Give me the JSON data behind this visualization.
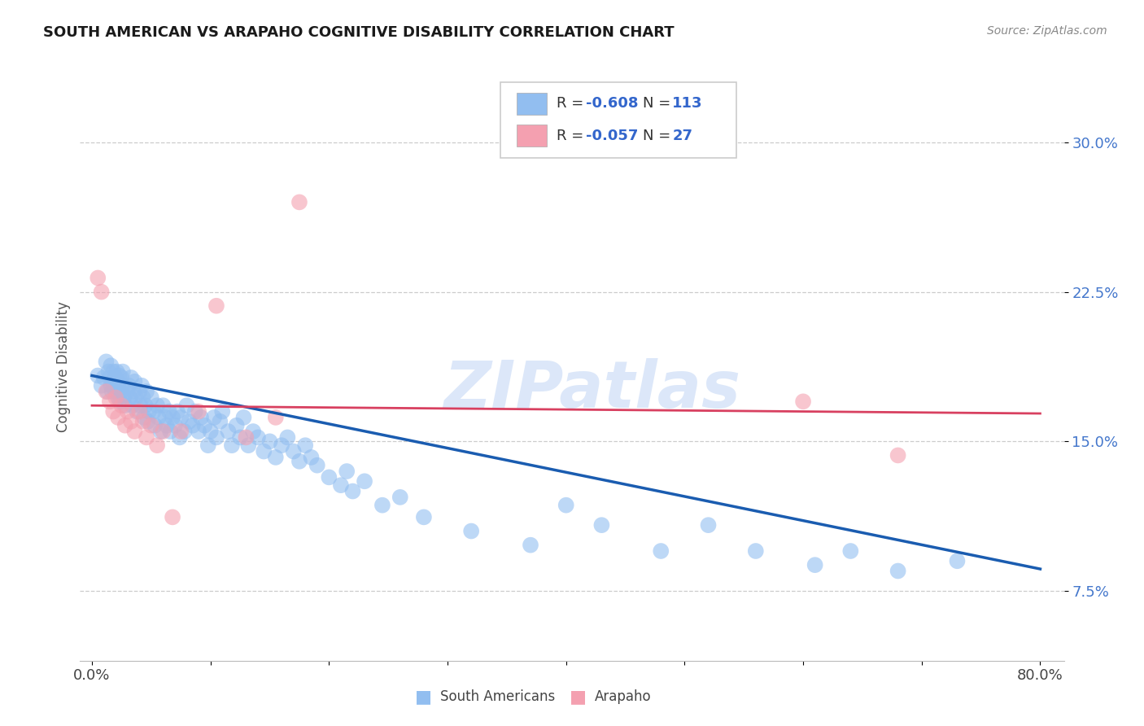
{
  "title": "SOUTH AMERICAN VS ARAPAHO COGNITIVE DISABILITY CORRELATION CHART",
  "source": "Source: ZipAtlas.com",
  "ylabel": "Cognitive Disability",
  "watermark": "ZIPatlas",
  "xlim": [
    -0.01,
    0.82
  ],
  "ylim": [
    0.04,
    0.335
  ],
  "yticks": [
    0.075,
    0.15,
    0.225,
    0.3
  ],
  "yticklabels": [
    "7.5%",
    "15.0%",
    "22.5%",
    "30.0%"
  ],
  "xtick_positions": [
    0.0,
    0.1,
    0.2,
    0.3,
    0.4,
    0.5,
    0.6,
    0.7,
    0.8
  ],
  "blue_R": "-0.608",
  "blue_N": "113",
  "pink_R": "-0.057",
  "pink_N": "27",
  "blue_color": "#92BEF0",
  "pink_color": "#F4A0B0",
  "blue_line_color": "#1A5CB0",
  "pink_line_color": "#D84060",
  "legend_label1": "South Americans",
  "legend_label2": "Arapaho",
  "blue_line_x0": 0.0,
  "blue_line_y0": 0.183,
  "blue_line_x1": 0.8,
  "blue_line_y1": 0.086,
  "pink_line_x0": 0.0,
  "pink_line_y0": 0.168,
  "pink_line_x1": 0.8,
  "pink_line_y1": 0.164,
  "blue_x": [
    0.005,
    0.008,
    0.01,
    0.012,
    0.013,
    0.014,
    0.015,
    0.016,
    0.016,
    0.017,
    0.018,
    0.018,
    0.019,
    0.02,
    0.02,
    0.021,
    0.021,
    0.022,
    0.022,
    0.023,
    0.023,
    0.024,
    0.025,
    0.025,
    0.026,
    0.026,
    0.027,
    0.028,
    0.03,
    0.031,
    0.032,
    0.033,
    0.034,
    0.035,
    0.036,
    0.037,
    0.038,
    0.04,
    0.041,
    0.042,
    0.043,
    0.044,
    0.045,
    0.046,
    0.047,
    0.048,
    0.05,
    0.052,
    0.053,
    0.055,
    0.056,
    0.058,
    0.06,
    0.062,
    0.063,
    0.065,
    0.066,
    0.068,
    0.07,
    0.072,
    0.074,
    0.075,
    0.078,
    0.08,
    0.082,
    0.085,
    0.087,
    0.09,
    0.092,
    0.095,
    0.098,
    0.1,
    0.103,
    0.105,
    0.108,
    0.11,
    0.115,
    0.118,
    0.122,
    0.125,
    0.128,
    0.132,
    0.136,
    0.14,
    0.145,
    0.15,
    0.155,
    0.16,
    0.165,
    0.17,
    0.175,
    0.18,
    0.185,
    0.19,
    0.2,
    0.21,
    0.215,
    0.22,
    0.23,
    0.245,
    0.26,
    0.28,
    0.32,
    0.37,
    0.4,
    0.43,
    0.48,
    0.52,
    0.56,
    0.61,
    0.64,
    0.68,
    0.73
  ],
  "blue_y": [
    0.183,
    0.178,
    0.182,
    0.19,
    0.175,
    0.185,
    0.182,
    0.188,
    0.178,
    0.175,
    0.18,
    0.185,
    0.178,
    0.182,
    0.175,
    0.178,
    0.185,
    0.172,
    0.18,
    0.176,
    0.183,
    0.17,
    0.175,
    0.182,
    0.178,
    0.185,
    0.172,
    0.168,
    0.175,
    0.178,
    0.172,
    0.182,
    0.168,
    0.175,
    0.18,
    0.172,
    0.165,
    0.175,
    0.168,
    0.178,
    0.172,
    0.162,
    0.168,
    0.175,
    0.16,
    0.165,
    0.172,
    0.165,
    0.158,
    0.168,
    0.162,
    0.155,
    0.168,
    0.162,
    0.158,
    0.165,
    0.155,
    0.162,
    0.158,
    0.165,
    0.152,
    0.162,
    0.155,
    0.168,
    0.16,
    0.158,
    0.165,
    0.155,
    0.162,
    0.158,
    0.148,
    0.155,
    0.162,
    0.152,
    0.16,
    0.165,
    0.155,
    0.148,
    0.158,
    0.152,
    0.162,
    0.148,
    0.155,
    0.152,
    0.145,
    0.15,
    0.142,
    0.148,
    0.152,
    0.145,
    0.14,
    0.148,
    0.142,
    0.138,
    0.132,
    0.128,
    0.135,
    0.125,
    0.13,
    0.118,
    0.122,
    0.112,
    0.105,
    0.098,
    0.118,
    0.108,
    0.095,
    0.108,
    0.095,
    0.088,
    0.095,
    0.085,
    0.09
  ],
  "pink_x": [
    0.005,
    0.008,
    0.012,
    0.015,
    0.018,
    0.02,
    0.022,
    0.025,
    0.028,
    0.03,
    0.033,
    0.036,
    0.04,
    0.043,
    0.046,
    0.05,
    0.055,
    0.06,
    0.068,
    0.075,
    0.09,
    0.105,
    0.13,
    0.155,
    0.175,
    0.6,
    0.68
  ],
  "pink_y": [
    0.232,
    0.225,
    0.175,
    0.17,
    0.165,
    0.172,
    0.162,
    0.168,
    0.158,
    0.165,
    0.16,
    0.155,
    0.165,
    0.16,
    0.152,
    0.158,
    0.148,
    0.155,
    0.112,
    0.155,
    0.165,
    0.218,
    0.152,
    0.162,
    0.27,
    0.17,
    0.143
  ]
}
